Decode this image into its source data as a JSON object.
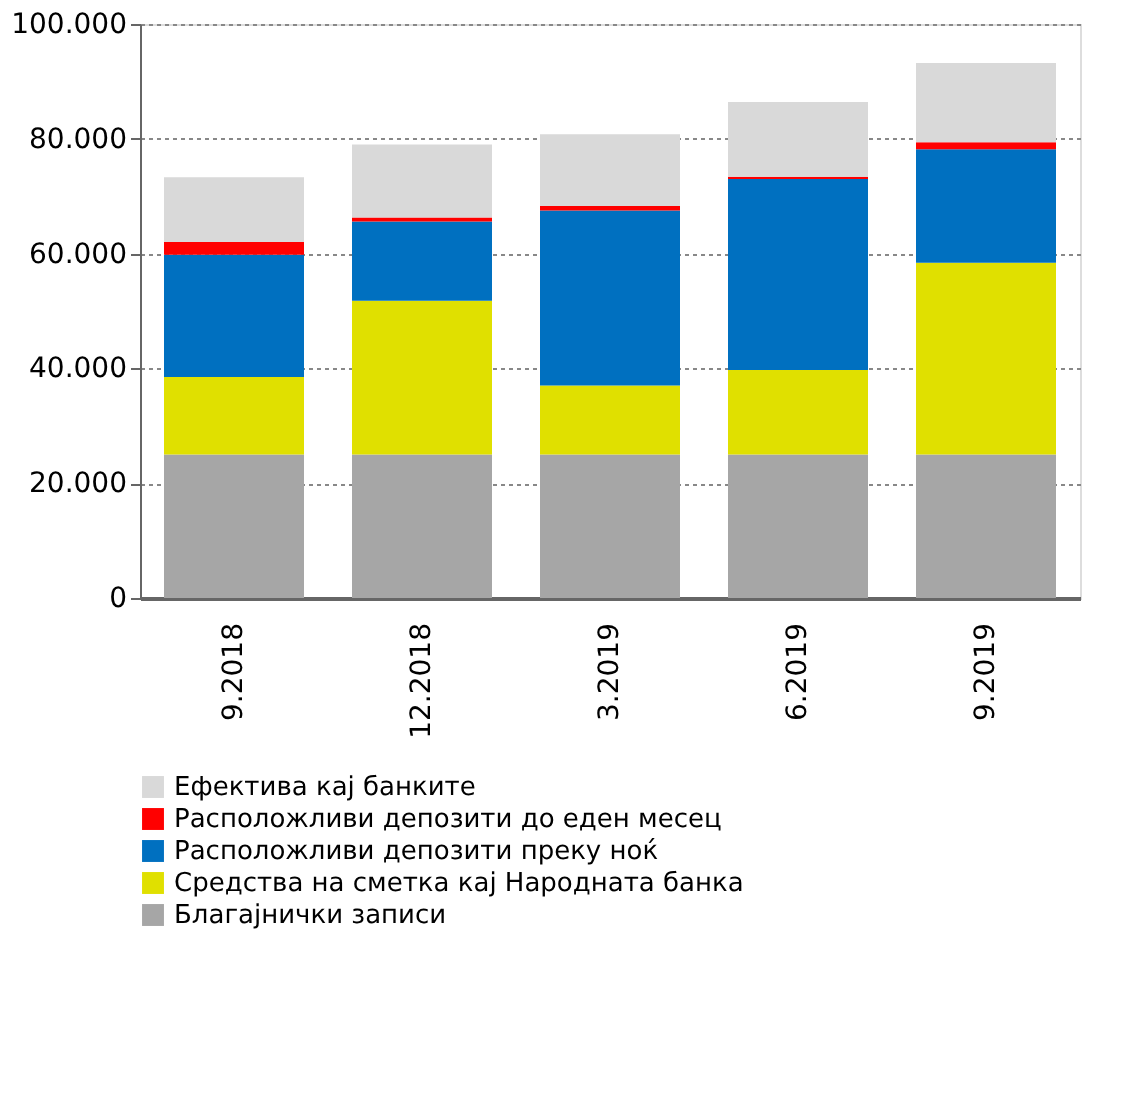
{
  "chart_data": {
    "type": "bar",
    "stacked": true,
    "categories": [
      "9.2018",
      "12.2018",
      "3.2019",
      "6.2019",
      "9.2019"
    ],
    "series": [
      {
        "name": "Благајнички записи",
        "color": "#a6a6a6",
        "values": [
          25000,
          25000,
          25000,
          25000,
          25000
        ]
      },
      {
        "name": "Средства на сметка кај Народната банка",
        "color": "#e0e000",
        "values": [
          13500,
          26800,
          12000,
          14700,
          33400
        ]
      },
      {
        "name": "Расположливи депозити преку ноќ",
        "color": "#0070c0",
        "values": [
          21300,
          13800,
          30500,
          33300,
          19800
        ]
      },
      {
        "name": "Расположливи депозити до еден месец",
        "color": "#ff0000",
        "values": [
          2200,
          700,
          800,
          400,
          1200
        ]
      },
      {
        "name": "Ефектива кај банките",
        "color": "#d9d9d9",
        "values": [
          11300,
          12700,
          12500,
          13000,
          13800
        ]
      }
    ],
    "ylim": [
      0,
      100000
    ],
    "yticks": [
      0,
      {
        "value": 20000,
        "label": "20.000"
      },
      {
        "value": 40000,
        "label": "40.000"
      },
      {
        "value": 60000,
        "label": "60.000"
      },
      {
        "value": 80000,
        "label": "80.000"
      },
      {
        "value": 100000,
        "label": "100.000"
      }
    ],
    "grid": "y",
    "legend": "bottom"
  }
}
